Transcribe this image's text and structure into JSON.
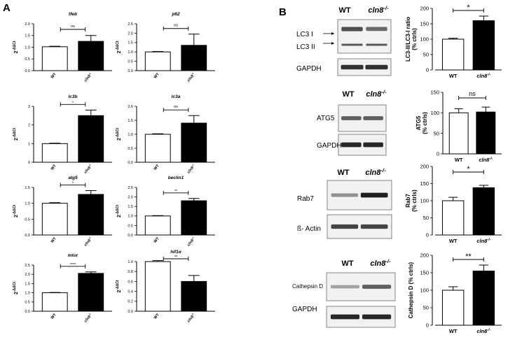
{
  "panels": {
    "a_label": "A",
    "b_label": "B"
  },
  "blots": [
    {
      "id": "lc3",
      "headers": [
        "WT",
        "cln8-/-"
      ],
      "rows": [
        {
          "label": "LC3 I",
          "wt_level": 0.7,
          "ko_level": 0.55,
          "double": true
        },
        {
          "label": "GAPDH",
          "wt_level": 0.85,
          "ko_level": 0.85
        }
      ],
      "row_labels_extra": [
        "LC3 II"
      ]
    },
    {
      "id": "atg5",
      "headers": [
        "WT",
        "cln8-/-"
      ],
      "rows": [
        {
          "label": "ATG5",
          "wt_level": 0.6,
          "ko_level": 0.6
        },
        {
          "label": "GAPDH",
          "wt_level": 0.9,
          "ko_level": 0.9
        }
      ]
    },
    {
      "id": "rab7",
      "headers": [
        "WT",
        "cln8-/-"
      ],
      "rows": [
        {
          "label": "Rab7",
          "wt_level": 0.35,
          "ko_level": 0.95
        },
        {
          "label": "ß- Actin",
          "wt_level": 0.75,
          "ko_level": 0.75
        }
      ]
    },
    {
      "id": "cathepsin",
      "headers": [
        "WT",
        "cln8-/-"
      ],
      "rows": [
        {
          "label": "Cathepsin D",
          "wt_level": 0.25,
          "ko_level": 0.6
        },
        {
          "label": "GAPDH",
          "wt_level": 0.9,
          "ko_level": 0.9
        }
      ]
    }
  ],
  "chart_data": [
    {
      "type": "bar",
      "title": "tfeb",
      "ylabel": "2^-ΔΔCt",
      "categories": [
        "WT",
        "cln8-/-"
      ],
      "values": [
        1.02,
        1.25
      ],
      "errors": [
        0.02,
        0.25
      ],
      "ylim": [
        0,
        2.0
      ],
      "yticks": [
        "0.0",
        "0.5",
        "1.0",
        "1.5",
        "2.0"
      ],
      "significance": "ns"
    },
    {
      "type": "bar",
      "title": "p62",
      "ylabel": "2^-ΔΔCt",
      "categories": [
        "WT",
        "cln8-/-"
      ],
      "values": [
        1.0,
        1.35
      ],
      "errors": [
        0.02,
        0.6
      ],
      "ylim": [
        0,
        2.5
      ],
      "yticks": [
        "0.0",
        "0.5",
        "1.0",
        "1.5",
        "2.0",
        "2.5"
      ],
      "significance": "ns"
    },
    {
      "type": "bar",
      "title": "lc3b",
      "ylabel": "2^-ΔΔCt",
      "categories": [
        "WT",
        "cln8-/-"
      ],
      "values": [
        1.0,
        2.5
      ],
      "errors": [
        0.02,
        0.3
      ],
      "ylim": [
        0,
        3
      ],
      "yticks": [
        "0",
        "1",
        "2",
        "3"
      ],
      "significance": "*"
    },
    {
      "type": "bar",
      "title": "lc3a",
      "ylabel": "2^-ΔΔCt",
      "categories": [
        "WT",
        "cln8-/-"
      ],
      "values": [
        1.0,
        1.4
      ],
      "errors": [
        0.02,
        0.27
      ],
      "ylim": [
        0,
        2.0
      ],
      "yticks": [
        "0.0",
        "0.5",
        "1.0",
        "1.5",
        "2.0"
      ],
      "significance": "ns"
    },
    {
      "type": "bar",
      "title": "atg5",
      "ylabel": "2^-ΔΔCt",
      "categories": [
        "WT",
        "cln8-/-"
      ],
      "values": [
        1.0,
        1.28
      ],
      "errors": [
        0.02,
        0.12
      ],
      "ylim": [
        0,
        1.5
      ],
      "yticks": [
        "0.0",
        "0.5",
        "1.0",
        "1.5"
      ],
      "significance": "*"
    },
    {
      "type": "bar",
      "title": "beclin1",
      "ylabel": "2^-ΔΔCt",
      "categories": [
        "WT",
        "cln8-/-"
      ],
      "values": [
        1.0,
        1.8
      ],
      "errors": [
        0.02,
        0.12
      ],
      "ylim": [
        0,
        2.5
      ],
      "yticks": [
        "0.0",
        "0.5",
        "1.0",
        "1.5",
        "2.0",
        "2.5"
      ],
      "significance": "**"
    },
    {
      "type": "bar",
      "title": "mtor",
      "ylabel": "2^-ΔΔCt",
      "categories": [
        "WT",
        "cln8-/-"
      ],
      "values": [
        1.0,
        2.05
      ],
      "errors": [
        0.02,
        0.08
      ],
      "ylim": [
        0,
        2.5
      ],
      "yticks": [
        "0.0",
        "0.5",
        "1.0",
        "1.5",
        "2.0",
        "2.5"
      ],
      "significance": "****"
    },
    {
      "type": "bar",
      "title": "hif1α",
      "ylabel": "2^-ΔΔCt",
      "categories": [
        "WT",
        "cln8-/-"
      ],
      "values": [
        1.0,
        0.6
      ],
      "errors": [
        0.02,
        0.12
      ],
      "ylim": [
        0,
        1.0
      ],
      "yticks": [
        "0.0",
        "0.2",
        "0.4",
        "0.6",
        "0.8",
        "1.0"
      ],
      "significance": "**"
    },
    {
      "type": "bar",
      "title": "",
      "ylabel": "LC3-II/LC3-I ratio (% ctrls)",
      "categories": [
        "WT",
        "cln8-/-"
      ],
      "values": [
        100,
        160
      ],
      "errors": [
        3,
        15
      ],
      "ylim": [
        0,
        200
      ],
      "yticks": [
        "0",
        "50",
        "100",
        "150",
        "200"
      ],
      "significance": "*"
    },
    {
      "type": "bar",
      "title": "",
      "ylabel": "ATG5 (% ctrls)",
      "categories": [
        "WT",
        "cln8-/-"
      ],
      "values": [
        100,
        102
      ],
      "errors": [
        10,
        12
      ],
      "ylim": [
        0,
        150
      ],
      "yticks": [
        "0",
        "50",
        "100",
        "150"
      ],
      "significance": "ns"
    },
    {
      "type": "bar",
      "title": "",
      "ylabel": "Rab7 (% ctrls)",
      "categories": [
        "WT",
        "cln8-/-"
      ],
      "values": [
        100,
        138
      ],
      "errors": [
        10,
        7
      ],
      "ylim": [
        0,
        200
      ],
      "yticks": [
        "0",
        "50",
        "100",
        "150",
        "200"
      ],
      "significance": "*"
    },
    {
      "type": "bar",
      "title": "",
      "ylabel": "Cathepsin D (% ctrls)",
      "categories": [
        "WT",
        "cln8-/-"
      ],
      "values": [
        100,
        155
      ],
      "errors": [
        10,
        17
      ],
      "ylim": [
        0,
        200
      ],
      "yticks": [
        "0",
        "50",
        "100",
        "150",
        "200"
      ],
      "significance": "**"
    }
  ]
}
